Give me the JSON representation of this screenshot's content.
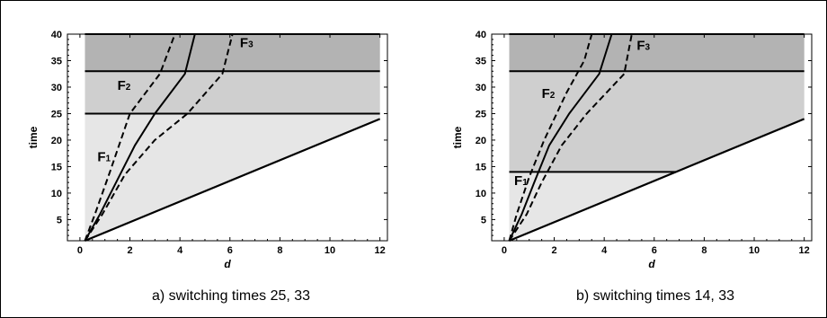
{
  "chart_data": [
    {
      "type": "line",
      "caption": "a) switching times 25, 33",
      "xlabel": "d",
      "ylabel": "time",
      "xlim": [
        -0.5,
        12.3
      ],
      "ylim": [
        1,
        40
      ],
      "xticks": [
        0,
        2,
        4,
        6,
        8,
        10,
        12
      ],
      "yticks": [
        5,
        10,
        15,
        20,
        25,
        30,
        35,
        40
      ],
      "switching_times": [
        25,
        33
      ],
      "shades": {
        "light": "#e6e6e6",
        "medium": "#cfcfcf",
        "dark": "#b3b3b3"
      },
      "boundary": [
        [
          0.2,
          1
        ],
        [
          12,
          24
        ]
      ],
      "region_labels": [
        {
          "letter": "F",
          "sub": "1",
          "x": 0.7,
          "y": 16
        },
        {
          "letter": "F",
          "sub": "2",
          "x": 1.5,
          "y": 29.5
        },
        {
          "letter": "F",
          "sub": "3",
          "x": 6.4,
          "y": 37.5
        }
      ],
      "series": [
        {
          "style": "solid",
          "points": [
            [
              0.2,
              1
            ],
            [
              0.8,
              6
            ],
            [
              1.5,
              12.5
            ],
            [
              2.2,
              19
            ],
            [
              3,
              25
            ],
            [
              4.2,
              32.5
            ],
            [
              4.6,
              40
            ]
          ]
        },
        {
          "style": "dashed",
          "points": [
            [
              0.2,
              1
            ],
            [
              0.6,
              6
            ],
            [
              1.2,
              14
            ],
            [
              2,
              25
            ],
            [
              3.2,
              32.5
            ],
            [
              3.8,
              40
            ]
          ]
        },
        {
          "style": "dashed",
          "points": [
            [
              0.2,
              1
            ],
            [
              0.9,
              6
            ],
            [
              1.8,
              13.5
            ],
            [
              3,
              20
            ],
            [
              4.3,
              25
            ],
            [
              5.7,
              32.5
            ],
            [
              6.1,
              40
            ]
          ]
        }
      ]
    },
    {
      "type": "line",
      "caption": "b) switching times 14, 33",
      "xlabel": "d",
      "ylabel": "time",
      "xlim": [
        -0.5,
        12.3
      ],
      "ylim": [
        1,
        40
      ],
      "xticks": [
        0,
        2,
        4,
        6,
        8,
        10,
        12
      ],
      "yticks": [
        5,
        10,
        15,
        20,
        25,
        30,
        35,
        40
      ],
      "switching_times": [
        14,
        33
      ],
      "shades": {
        "light": "#e6e6e6",
        "medium": "#cfcfcf",
        "dark": "#b3b3b3"
      },
      "boundary": [
        [
          0.2,
          1
        ],
        [
          12,
          24
        ]
      ],
      "region_labels": [
        {
          "letter": "F",
          "sub": "1",
          "x": 0.4,
          "y": 11.5
        },
        {
          "letter": "F",
          "sub": "2",
          "x": 1.5,
          "y": 28
        },
        {
          "letter": "F",
          "sub": "3",
          "x": 5.3,
          "y": 37
        }
      ],
      "series": [
        {
          "style": "solid",
          "points": [
            [
              0.2,
              1
            ],
            [
              0.7,
              6
            ],
            [
              1.2,
              12
            ],
            [
              1.8,
              19
            ],
            [
              2.6,
              25
            ],
            [
              3.8,
              32.5
            ],
            [
              4.3,
              40
            ]
          ]
        },
        {
          "style": "dashed",
          "points": [
            [
              0.2,
              1
            ],
            [
              0.5,
              6
            ],
            [
              1,
              13
            ],
            [
              1.6,
              20
            ],
            [
              2.5,
              29
            ],
            [
              3.2,
              35
            ],
            [
              3.5,
              40
            ]
          ]
        },
        {
          "style": "dashed",
          "points": [
            [
              0.2,
              1
            ],
            [
              0.9,
              6
            ],
            [
              1.5,
              12
            ],
            [
              2.3,
              19
            ],
            [
              3.3,
              25
            ],
            [
              4.8,
              32.5
            ],
            [
              5.1,
              40
            ]
          ]
        }
      ]
    }
  ]
}
